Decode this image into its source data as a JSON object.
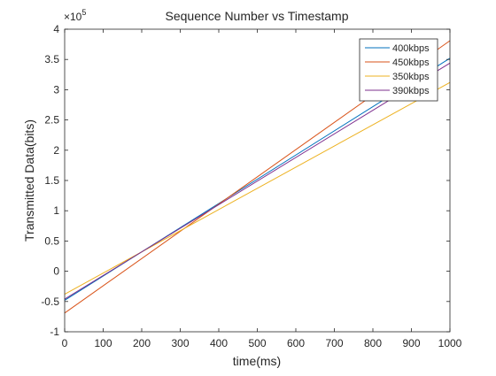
{
  "chart_data": {
    "type": "line",
    "title": "Sequence Number vs Timestamp",
    "xlabel": "time(ms)",
    "ylabel": "Transmitted Data(bits)",
    "y_exponent_label": "×10",
    "y_exponent": "5",
    "xlim": [
      0,
      1000
    ],
    "ylim": [
      -1,
      4
    ],
    "xticks": [
      0,
      100,
      200,
      300,
      400,
      500,
      600,
      700,
      800,
      900,
      1000
    ],
    "yticks": [
      -1,
      -0.5,
      0,
      0.5,
      1,
      1.5,
      2,
      2.5,
      3,
      3.5,
      4
    ],
    "ytick_labels": [
      "-1",
      "-0.5",
      "0",
      "0.5",
      "1",
      "1.5",
      "2",
      "2.5",
      "3",
      "3.5",
      "4"
    ],
    "grid": false,
    "legend_position": "top-right",
    "series": [
      {
        "name": "400kbps",
        "color": "#0072BD",
        "x": [
          0,
          1000
        ],
        "y": [
          -0.48,
          3.52
        ]
      },
      {
        "name": "450kbps",
        "color": "#D95319",
        "x": [
          0,
          1000
        ],
        "y": [
          -0.69,
          3.81
        ]
      },
      {
        "name": "350kbps",
        "color": "#EDB120",
        "x": [
          0,
          1000
        ],
        "y": [
          -0.38,
          3.12
        ]
      },
      {
        "name": "390kbps",
        "color": "#7E2F8E",
        "x": [
          0,
          1000
        ],
        "y": [
          -0.46,
          3.44
        ]
      }
    ]
  }
}
